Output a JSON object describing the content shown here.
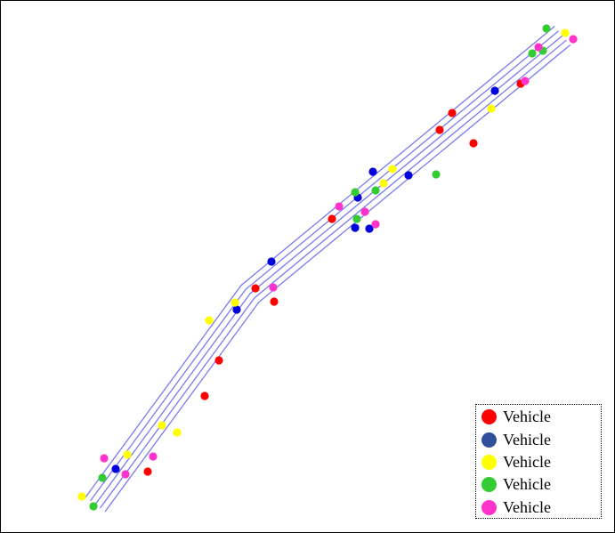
{
  "chart_data": {
    "type": "scatter",
    "title": "",
    "xlabel": "",
    "ylabel": "",
    "grid": false,
    "axes_visible": false,
    "lane_count": 5,
    "legend_placement": "bottom-right",
    "legend": [
      {
        "label": "Vehicle",
        "color": "#ff0000"
      },
      {
        "label": "Vehicle",
        "color": "#2f4f9a"
      },
      {
        "label": "Vehicle",
        "color": "#ffff00"
      },
      {
        "label": "Vehicle",
        "color": "#33cc33"
      },
      {
        "label": "Vehicle",
        "color": "#ff33cc"
      }
    ],
    "series": [
      {
        "color": "#ff0000",
        "points": [
          [
            508,
            127
          ],
          [
            494,
            146
          ],
          [
            532,
            161
          ],
          [
            585,
            94
          ],
          [
            373,
            246
          ],
          [
            287,
            324
          ],
          [
            308,
            339
          ],
          [
            246,
            405
          ],
          [
            230,
            445
          ],
          [
            166,
            530
          ]
        ]
      },
      {
        "color": "#0000dd",
        "points": [
          [
            556,
            102
          ],
          [
            419,
            193
          ],
          [
            459,
            197
          ],
          [
            402,
            222
          ],
          [
            399,
            256
          ],
          [
            415,
            257
          ],
          [
            305,
            294
          ],
          [
            266,
            348
          ],
          [
            130,
            527
          ]
        ]
      },
      {
        "color": "#ffff00",
        "points": [
          [
            635,
            37
          ],
          [
            552,
            122
          ],
          [
            441,
            190
          ],
          [
            431,
            206
          ],
          [
            264,
            340
          ],
          [
            235,
            360
          ],
          [
            182,
            478
          ],
          [
            199,
            486
          ],
          [
            143,
            511
          ],
          [
            92,
            558
          ]
        ]
      },
      {
        "color": "#33cc33",
        "points": [
          [
            614,
            32
          ],
          [
            598,
            60
          ],
          [
            610,
            57
          ],
          [
            490,
            196
          ],
          [
            399,
            216
          ],
          [
            422,
            214
          ],
          [
            401,
            246
          ],
          [
            115,
            537
          ],
          [
            105,
            569
          ]
        ]
      },
      {
        "color": "#ff33cc",
        "points": [
          [
            644,
            44
          ],
          [
            605,
            53
          ],
          [
            590,
            91
          ],
          [
            381,
            232
          ],
          [
            410,
            238
          ],
          [
            422,
            252
          ],
          [
            307,
            323
          ],
          [
            172,
            513
          ],
          [
            117,
            515
          ],
          [
            141,
            533
          ]
        ]
      }
    ]
  }
}
